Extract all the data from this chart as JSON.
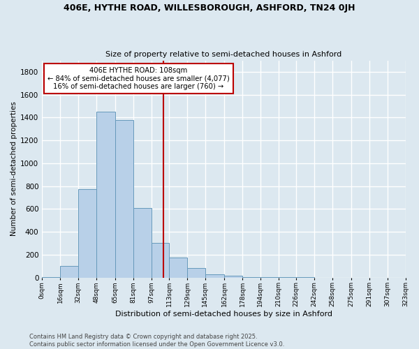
{
  "title1": "406E, HYTHE ROAD, WILLESBOROUGH, ASHFORD, TN24 0JH",
  "title2": "Size of property relative to semi-detached houses in Ashford",
  "xlabel": "Distribution of semi-detached houses by size in Ashford",
  "ylabel": "Number of semi-detached properties",
  "bin_edges": [
    0,
    16,
    32,
    48,
    65,
    81,
    97,
    113,
    129,
    145,
    162,
    178,
    194,
    210,
    226,
    242,
    258,
    275,
    291,
    307,
    323
  ],
  "bin_labels": [
    "0sqm",
    "16sqm",
    "32sqm",
    "48sqm",
    "65sqm",
    "81sqm",
    "97sqm",
    "113sqm",
    "129sqm",
    "145sqm",
    "162sqm",
    "178sqm",
    "194sqm",
    "210sqm",
    "226sqm",
    "242sqm",
    "258sqm",
    "275sqm",
    "291sqm",
    "307sqm",
    "323sqm"
  ],
  "counts": [
    5,
    100,
    770,
    1450,
    1380,
    610,
    300,
    175,
    85,
    30,
    15,
    5,
    2,
    1,
    1,
    0,
    0,
    0,
    0,
    0
  ],
  "bar_color": "#b8d0e8",
  "bar_edge_color": "#6699bb",
  "fig_bg_color": "#dce8f0",
  "ax_bg_color": "#dce8f0",
  "grid_color": "#ffffff",
  "vline_x": 108,
  "vline_color": "#bb0000",
  "annotation_title": "406E HYTHE ROAD: 108sqm",
  "annotation_line1": "← 84% of semi-detached houses are smaller (4,077)",
  "annotation_line2": "16% of semi-detached houses are larger (760) →",
  "annotation_box_color": "#bb0000",
  "ylim": [
    0,
    1900
  ],
  "yticks": [
    0,
    200,
    400,
    600,
    800,
    1000,
    1200,
    1400,
    1600,
    1800
  ],
  "footer1": "Contains HM Land Registry data © Crown copyright and database right 2025.",
  "footer2": "Contains public sector information licensed under the Open Government Licence v3.0."
}
